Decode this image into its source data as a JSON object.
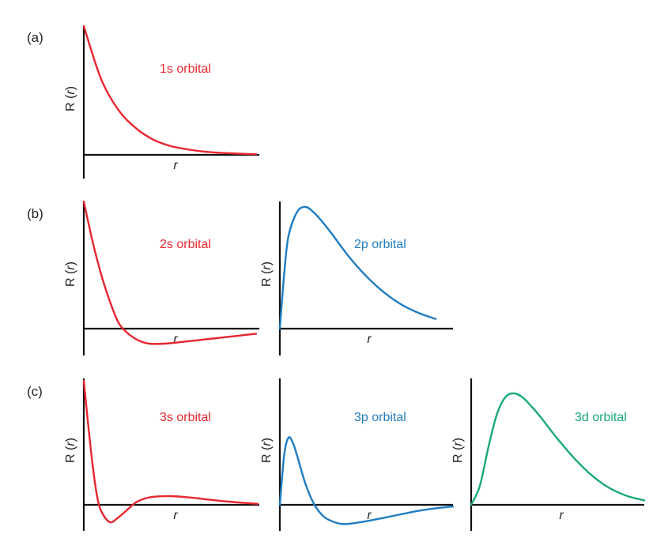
{
  "colors": {
    "s": "#e8262f",
    "p": "#1f7dc2",
    "d": "#1aa87e",
    "axis": "#111111"
  },
  "panel_labels": {
    "a": "(a)",
    "b": "(b)",
    "c": "(c)"
  },
  "axis_labels": {
    "y_prefix": "R (",
    "y_var": "r",
    "y_suffix": ")",
    "x": "r"
  },
  "chart_data": [
    {
      "type": "line",
      "panel": "(a)",
      "title": "1s orbital",
      "color": "#e8262f",
      "xlabel": "r",
      "ylabel": "R (r)",
      "xlim": [
        0,
        10
      ],
      "ylim": [
        -0.08,
        1.0
      ],
      "x": [
        0,
        1,
        2,
        3,
        4,
        5,
        6,
        7,
        8,
        9,
        10
      ],
      "y": [
        1.0,
        0.59,
        0.35,
        0.21,
        0.12,
        0.07,
        0.043,
        0.025,
        0.015,
        0.009,
        0.005
      ]
    },
    {
      "type": "line",
      "panel": "(b)",
      "title": "2s orbital",
      "color": "#e8262f",
      "xlabel": "r",
      "ylabel": "R (r)",
      "xlim": [
        0,
        10
      ],
      "ylim": [
        -0.2,
        1.0
      ],
      "x": [
        0,
        0.5,
        1,
        1.5,
        2,
        2.5,
        3,
        3.5,
        4,
        5,
        6,
        7,
        8,
        9,
        10
      ],
      "y": [
        1.0,
        0.69,
        0.43,
        0.22,
        0.05,
        -0.03,
        -0.08,
        -0.11,
        -0.12,
        -0.115,
        -0.1,
        -0.085,
        -0.07,
        -0.055,
        -0.04
      ]
    },
    {
      "type": "line",
      "panel": "(b)",
      "title": "2p orbital",
      "color": "#1f7dc2",
      "xlabel": "r",
      "ylabel": "R (r)",
      "xlim": [
        0,
        10
      ],
      "ylim": [
        -0.1,
        1.0
      ],
      "x": [
        0,
        0.25,
        0.5,
        1,
        1.5,
        2,
        2.5,
        3,
        4,
        5,
        6,
        7,
        8,
        9
      ],
      "y": [
        0.0,
        0.45,
        0.76,
        0.96,
        1.0,
        0.95,
        0.87,
        0.78,
        0.59,
        0.43,
        0.3,
        0.2,
        0.13,
        0.08
      ]
    },
    {
      "type": "line",
      "panel": "(c)",
      "title": "3s orbital",
      "color": "#e8262f",
      "xlabel": "r",
      "ylabel": "R (r)",
      "xlim": [
        0,
        10
      ],
      "ylim": [
        -0.18,
        1.0
      ],
      "x": [
        0,
        0.25,
        0.5,
        0.75,
        1,
        1.5,
        2,
        2.5,
        3,
        3.5,
        4,
        5,
        6,
        7,
        8,
        9,
        10
      ],
      "y": [
        1.0,
        0.65,
        0.33,
        0.08,
        -0.05,
        -0.14,
        -0.1,
        -0.04,
        0.02,
        0.05,
        0.065,
        0.07,
        0.06,
        0.045,
        0.03,
        0.018,
        0.008
      ]
    },
    {
      "type": "line",
      "panel": "(c)",
      "title": "3p orbital",
      "color": "#1f7dc2",
      "xlabel": "r",
      "ylabel": "R (r)",
      "xlim": [
        0,
        10
      ],
      "ylim": [
        -0.25,
        1.0
      ],
      "x": [
        0,
        0.25,
        0.5,
        0.75,
        1,
        1.5,
        2,
        2.5,
        3,
        3.5,
        4,
        5,
        6,
        7,
        8,
        9,
        10
      ],
      "y": [
        0.0,
        0.58,
        0.78,
        0.72,
        0.57,
        0.23,
        0.0,
        -0.13,
        -0.19,
        -0.22,
        -0.22,
        -0.19,
        -0.15,
        -0.11,
        -0.07,
        -0.04,
        -0.02
      ]
    },
    {
      "type": "line",
      "panel": "(c)",
      "title": "3d orbital",
      "color": "#1aa87e",
      "xlabel": "r",
      "ylabel": "R (r)",
      "xlim": [
        0,
        10
      ],
      "ylim": [
        -0.05,
        1.0
      ],
      "x": [
        0,
        0.5,
        1,
        1.5,
        2,
        2.5,
        3,
        3.5,
        4,
        5,
        6,
        7,
        8,
        9,
        10
      ],
      "y": [
        0.0,
        0.17,
        0.52,
        0.82,
        0.97,
        1.0,
        0.96,
        0.88,
        0.79,
        0.59,
        0.41,
        0.26,
        0.15,
        0.08,
        0.04
      ]
    }
  ]
}
